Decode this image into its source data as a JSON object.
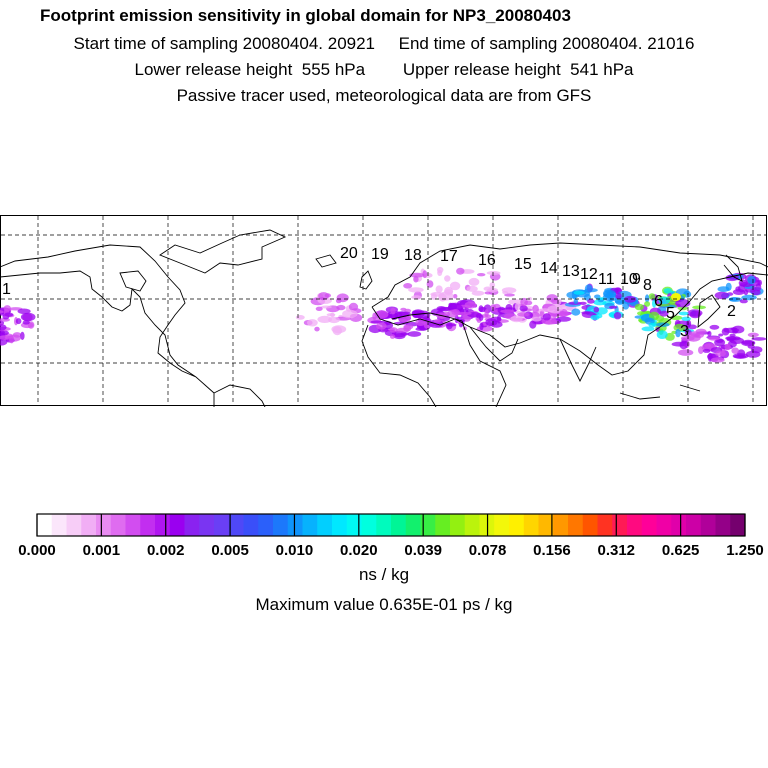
{
  "header": {
    "title": "Footprint emission sensitivity in global domain for NP3_20080403",
    "start_label": "Start time of sampling 20080404. 20921",
    "end_label": "End time of sampling 20080404. 21016",
    "lower_label": "Lower release height  555 hPa",
    "upper_label": "Upper release height  541 hPa",
    "tracer_note": "Passive tracer used, meteorological data are from GFS"
  },
  "chart_data": {
    "type": "heatmap",
    "title": "Footprint emission sensitivity in global domain for NP3_20080403",
    "xlabel": "",
    "ylabel": "",
    "grid": true,
    "colorbar": {
      "ticks": [
        "0.000",
        "0.001",
        "0.002",
        "0.005",
        "0.010",
        "0.020",
        "0.039",
        "0.078",
        "0.156",
        "0.312",
        "0.625",
        "1.250"
      ],
      "units": "ns / kg",
      "colors": [
        "#ffffff",
        "#fbe6fb",
        "#f7cdf7",
        "#f1aef5",
        "#e98cf2",
        "#df6cf0",
        "#d24df0",
        "#c22ef0",
        "#b015f0",
        "#9a00f0",
        "#8a22f0",
        "#7a35f2",
        "#6a3ff5",
        "#4f48f7",
        "#3a4ff9",
        "#2b60fa",
        "#1c78fb",
        "#0f94fc",
        "#07b2fd",
        "#02cffe",
        "#00e8ff",
        "#00f8f4",
        "#00ffdf",
        "#00fbbd",
        "#00f596",
        "#12f06d",
        "#38ee45",
        "#66ee22",
        "#93f011",
        "#bbf30c",
        "#dcf60a",
        "#f3f70a",
        "#fff000",
        "#ffd500",
        "#ffb800",
        "#ff9800",
        "#ff7700",
        "#ff5500",
        "#ff3322",
        "#ff1a55",
        "#ff0a80",
        "#ff0099",
        "#f000a6",
        "#e000aa",
        "#cc00a6",
        "#b0009a",
        "#940088",
        "#75006e"
      ]
    },
    "trajectory_labels": [
      "1",
      "2",
      "3",
      "5",
      "6",
      "8",
      "9",
      "10",
      "11",
      "12",
      "13",
      "14",
      "15",
      "16",
      "17",
      "18",
      "19",
      "20"
    ],
    "max_value_text": "Maximum value  0.635E-01 ps / kg"
  }
}
